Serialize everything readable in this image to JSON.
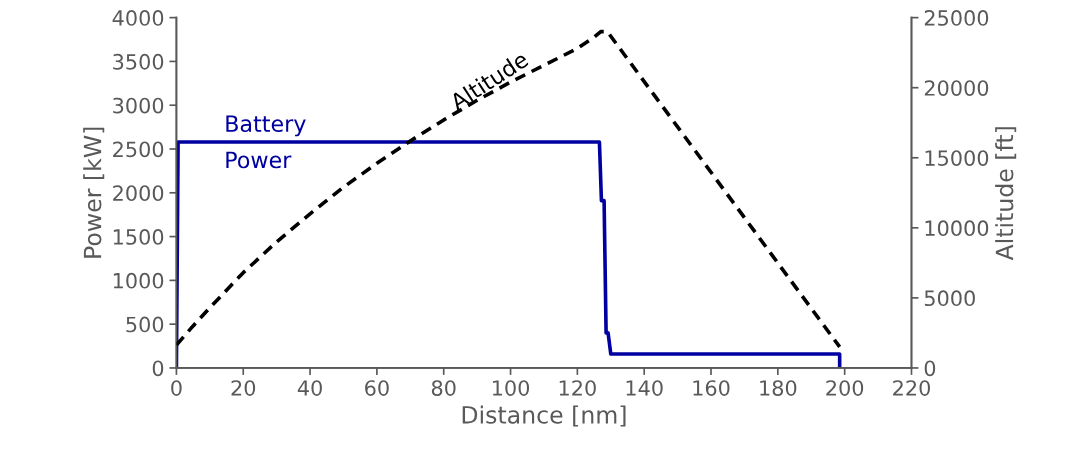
{
  "chart_data": {
    "type": "line",
    "xlabel": "Distance [nm]",
    "ylabel": "Power [kW]",
    "y2label": "Altitude [ft]",
    "xlim": [
      0,
      220
    ],
    "xticks": [
      0,
      20,
      40,
      60,
      80,
      100,
      120,
      140,
      160,
      180,
      200,
      220
    ],
    "ylim": [
      0,
      4000
    ],
    "yticks": [
      0,
      500,
      1000,
      1500,
      2000,
      2500,
      3000,
      3500,
      4000
    ],
    "y2lim": [
      0,
      25000
    ],
    "y2ticks": [
      0,
      5000,
      10000,
      15000,
      20000,
      25000
    ],
    "grid": false,
    "legend": false,
    "marker": "none",
    "series": [
      {
        "name": "Battery Power",
        "color": "#0000a0",
        "axis": "y",
        "line_style": "solid",
        "x": [
          0,
          0.5,
          126.6,
          127.2,
          128.0,
          128.6,
          129.2,
          130.0,
          198.5,
          198.5
        ],
        "values": [
          0,
          2580,
          2580,
          1910,
          1910,
          400,
          400,
          160,
          160,
          0
        ]
      },
      {
        "name": "Altitude",
        "color": "#000000",
        "axis": "y2",
        "line_style": "dashed",
        "x": [
          0,
          5,
          10,
          20,
          30,
          40,
          50,
          60,
          70,
          80,
          90,
          100,
          110,
          120,
          125,
          127,
          129,
          198.5
        ],
        "values": [
          1640,
          3000,
          4300,
          6800,
          9000,
          11000,
          12900,
          14600,
          16200,
          17700,
          19100,
          20400,
          21600,
          22800,
          23600,
          24000,
          24000,
          1500
        ]
      }
    ]
  }
}
